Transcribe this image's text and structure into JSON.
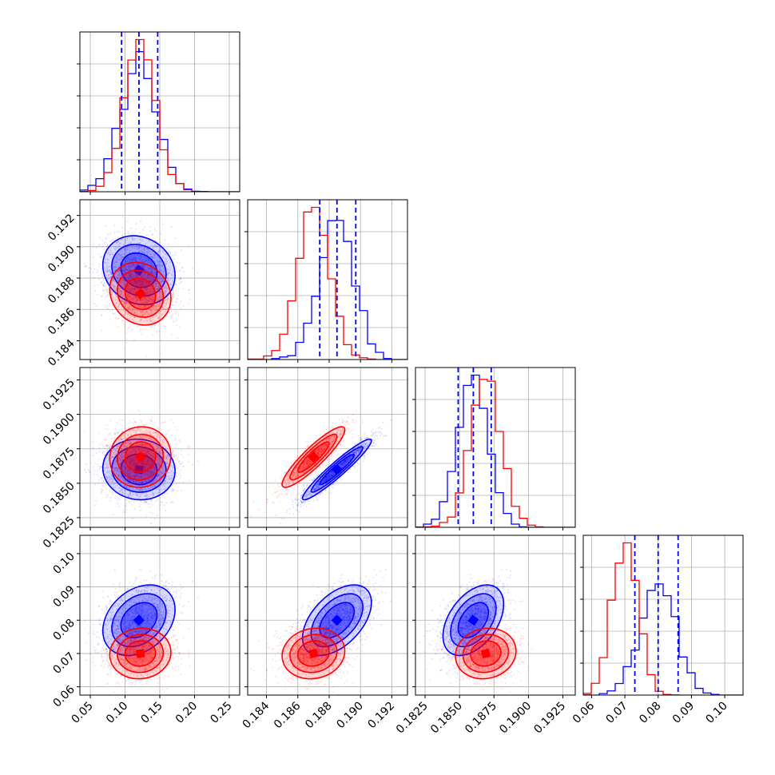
{
  "colors": {
    "sample_a": "#0000ff",
    "sample_b": "#ff0000",
    "quantile_line": "#0000ff",
    "grid": "#b0b0b0",
    "frame": "#000000"
  },
  "chart_data": {
    "type": "corner",
    "grid": true,
    "parameters": [
      {
        "range": [
          0.035,
          0.265
        ],
        "ticks": [
          0.05,
          0.1,
          0.15,
          0.2,
          0.25
        ],
        "tick_labels": [
          "0.05",
          "0.10",
          "0.15",
          "0.20",
          "0.25"
        ],
        "quantiles": [
          0.095,
          0.12,
          0.147
        ]
      },
      {
        "range": [
          0.1828,
          0.193
        ],
        "ticks": [
          0.184,
          0.186,
          0.188,
          0.19,
          0.192
        ],
        "tick_labels": [
          "0.184",
          "0.186",
          "0.188",
          "0.190",
          "0.192"
        ],
        "quantiles": [
          0.1874,
          0.1885,
          0.1897
        ]
      },
      {
        "range": [
          0.1818,
          0.1934
        ],
        "ticks": [
          0.1825,
          0.185,
          0.1875,
          0.19,
          0.1925
        ],
        "tick_labels": [
          "0.1825",
          "0.1850",
          "0.1875",
          "0.1900",
          "0.1925"
        ],
        "quantiles": [
          0.1849,
          0.186,
          0.1873
        ]
      },
      {
        "range": [
          0.0575,
          0.1055
        ],
        "ticks": [
          0.06,
          0.07,
          0.08,
          0.09,
          0.1
        ],
        "tick_labels": [
          "0.06",
          "0.07",
          "0.08",
          "0.09",
          "0.10"
        ],
        "quantiles": [
          0.073,
          0.08,
          0.086
        ]
      }
    ],
    "series": [
      {
        "color": "#0000ff",
        "mean": [
          0.12,
          0.1885,
          0.186,
          0.08
        ],
        "std": [
          0.026,
          0.0011,
          0.0011,
          0.0053
        ],
        "corr": [
          [
            1.0,
            -0.15,
            -0.05,
            0.3
          ],
          [
            -0.15,
            1.0,
            0.95,
            0.5
          ],
          [
            -0.05,
            0.95,
            1.0,
            0.45
          ],
          [
            0.3,
            0.5,
            0.45,
            1.0
          ]
        ]
      },
      {
        "color": "#ff0000",
        "mean": [
          0.122,
          0.187,
          0.1869,
          0.07
        ],
        "std": [
          0.022,
          0.001,
          0.0011,
          0.0038
        ],
        "corr": [
          [
            1.0,
            -0.15,
            0.05,
            0.05
          ],
          [
            -0.15,
            1.0,
            0.9,
            0.1
          ],
          [
            0.05,
            0.9,
            1.0,
            0.1
          ],
          [
            0.05,
            0.1,
            0.1,
            1.0
          ]
        ]
      }
    ]
  }
}
